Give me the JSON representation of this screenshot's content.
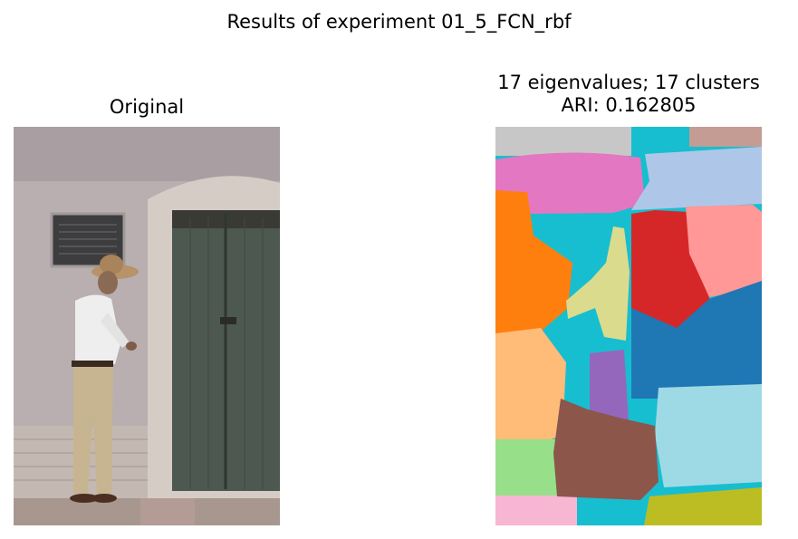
{
  "figure": {
    "title": "Results of experiment 01_5_FCN_rbf",
    "left_title": "Original",
    "right_title_line1": "17 eigenvalues; 17 clusters",
    "right_title_line2": "ARI: 0.162805"
  },
  "chart_data": {
    "type": "heatmap",
    "title": "Results of experiment 01_5_FCN_rbf",
    "panels": [
      {
        "name": "Original",
        "content": "photograph"
      },
      {
        "name": "segmentation",
        "eigenvalues": 17,
        "clusters": 17,
        "ARI": 0.162805
      }
    ],
    "colors": {
      "blue": "#1f77b4",
      "orange": "#ff7f0e",
      "green": "#2ca02c",
      "red": "#d62728",
      "purple": "#9467bd",
      "brown": "#8c564b",
      "pink": "#e377c2",
      "gray": "#c7c7c7",
      "olive": "#bcbd22",
      "cyan": "#17becf",
      "light_blue": "#aec7e8",
      "light_orange": "#ffbb78",
      "light_green": "#98df8a",
      "light_red": "#ff9896",
      "tan": "#c49c94",
      "light_pink": "#f7b6d2",
      "khaki": "#dbdb8d",
      "light_cyan": "#9edae5"
    }
  }
}
